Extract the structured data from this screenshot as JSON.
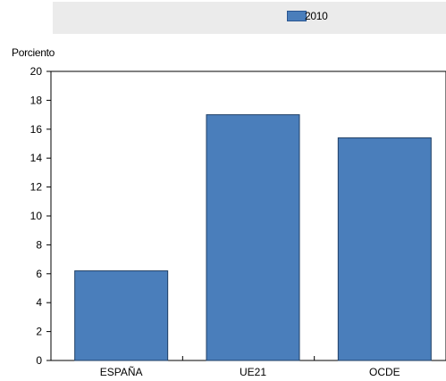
{
  "chart_data": {
    "type": "bar",
    "categories": [
      "ESPAÑA",
      "UE21",
      "OCDE"
    ],
    "series": [
      {
        "name": "2010",
        "values": [
          6.2,
          17.0,
          15.4
        ],
        "color": "#4a7ebb"
      }
    ],
    "ylabel": "Porciento",
    "ylim": [
      0,
      20
    ],
    "yticks": [
      "0",
      "2",
      "4",
      "6",
      "8",
      "10",
      "12",
      "14",
      "16",
      "18",
      "20"
    ],
    "legend_position": "top",
    "grid": false
  }
}
